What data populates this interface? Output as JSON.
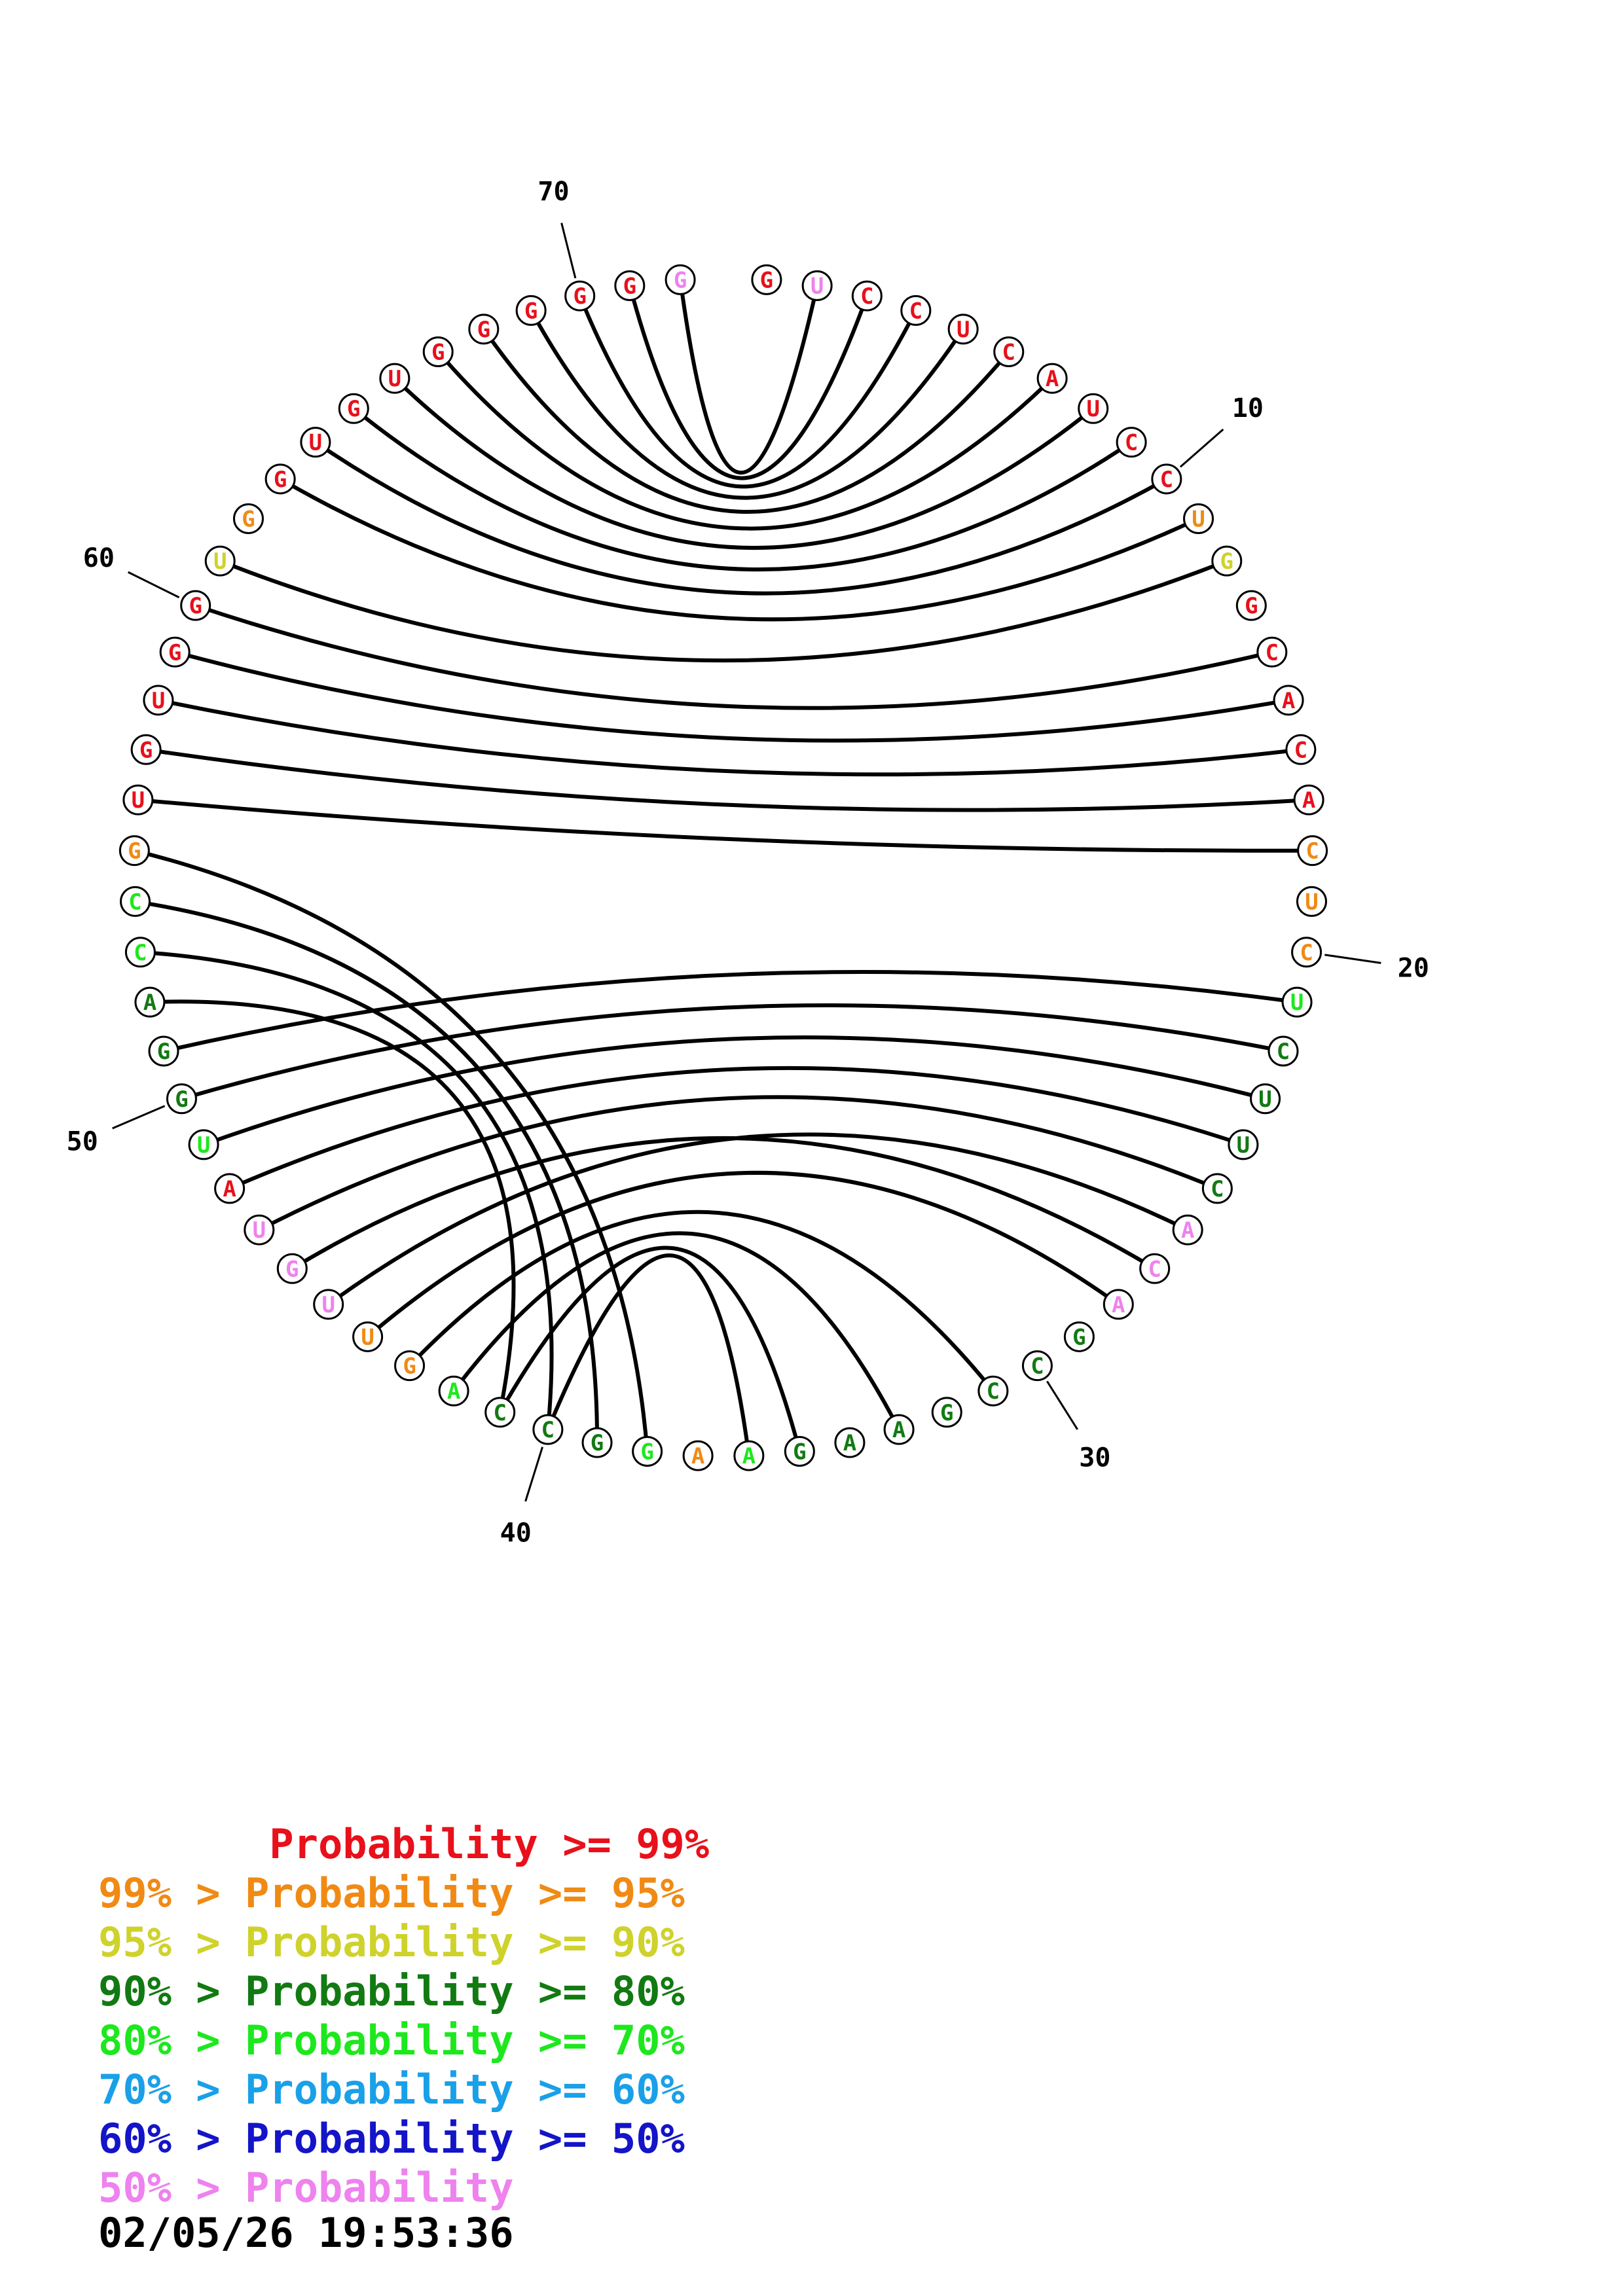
{
  "colors": {
    "p99": "#e8101a",
    "p95": "#f08a14",
    "p90": "#cfd22b",
    "p80": "#127a12",
    "p70": "#1de81d",
    "p60": "#1aa0e8",
    "p50": "#1414c8",
    "plt50": "#ee82ee"
  },
  "nucleotides": [
    {
      "n": 1,
      "base": "G",
      "c": "p99"
    },
    {
      "n": 2,
      "base": "U",
      "c": "plt50"
    },
    {
      "n": 3,
      "base": "C",
      "c": "p99"
    },
    {
      "n": 4,
      "base": "C",
      "c": "p99"
    },
    {
      "n": 5,
      "base": "U",
      "c": "p99"
    },
    {
      "n": 6,
      "base": "C",
      "c": "p99"
    },
    {
      "n": 7,
      "base": "A",
      "c": "p99"
    },
    {
      "n": 8,
      "base": "U",
      "c": "p99"
    },
    {
      "n": 9,
      "base": "C",
      "c": "p99"
    },
    {
      "n": 10,
      "base": "C",
      "c": "p99"
    },
    {
      "n": 11,
      "base": "U",
      "c": "p95"
    },
    {
      "n": 12,
      "base": "G",
      "c": "p90"
    },
    {
      "n": 13,
      "base": "G",
      "c": "p99"
    },
    {
      "n": 14,
      "base": "C",
      "c": "p99"
    },
    {
      "n": 15,
      "base": "A",
      "c": "p99"
    },
    {
      "n": 16,
      "base": "C",
      "c": "p99"
    },
    {
      "n": 17,
      "base": "A",
      "c": "p99"
    },
    {
      "n": 18,
      "base": "C",
      "c": "p95"
    },
    {
      "n": 19,
      "base": "U",
      "c": "p95"
    },
    {
      "n": 20,
      "base": "C",
      "c": "p95"
    },
    {
      "n": 21,
      "base": "U",
      "c": "p70"
    },
    {
      "n": 22,
      "base": "C",
      "c": "p80"
    },
    {
      "n": 23,
      "base": "U",
      "c": "p80"
    },
    {
      "n": 24,
      "base": "U",
      "c": "p80"
    },
    {
      "n": 25,
      "base": "C",
      "c": "p80"
    },
    {
      "n": 26,
      "base": "A",
      "c": "plt50"
    },
    {
      "n": 27,
      "base": "C",
      "c": "plt50"
    },
    {
      "n": 28,
      "base": "A",
      "c": "plt50"
    },
    {
      "n": 29,
      "base": "G",
      "c": "p80"
    },
    {
      "n": 30,
      "base": "C",
      "c": "p80"
    },
    {
      "n": 31,
      "base": "C",
      "c": "p80"
    },
    {
      "n": 32,
      "base": "G",
      "c": "p80"
    },
    {
      "n": 33,
      "base": "A",
      "c": "p80"
    },
    {
      "n": 34,
      "base": "A",
      "c": "p80"
    },
    {
      "n": 35,
      "base": "G",
      "c": "p80"
    },
    {
      "n": 36,
      "base": "A",
      "c": "p70"
    },
    {
      "n": 37,
      "base": "A",
      "c": "p95"
    },
    {
      "n": 38,
      "base": "G",
      "c": "p70"
    },
    {
      "n": 39,
      "base": "G",
      "c": "p80"
    },
    {
      "n": 40,
      "base": "C",
      "c": "p80"
    },
    {
      "n": 41,
      "base": "C",
      "c": "p80"
    },
    {
      "n": 42,
      "base": "A",
      "c": "p70"
    },
    {
      "n": 43,
      "base": "G",
      "c": "p95"
    },
    {
      "n": 44,
      "base": "U",
      "c": "p95"
    },
    {
      "n": 45,
      "base": "U",
      "c": "plt50"
    },
    {
      "n": 46,
      "base": "G",
      "c": "plt50"
    },
    {
      "n": 47,
      "base": "U",
      "c": "plt50"
    },
    {
      "n": 48,
      "base": "A",
      "c": "p99"
    },
    {
      "n": 49,
      "base": "U",
      "c": "p70"
    },
    {
      "n": 50,
      "base": "G",
      "c": "p80"
    },
    {
      "n": 51,
      "base": "G",
      "c": "p80"
    },
    {
      "n": 52,
      "base": "A",
      "c": "p80"
    },
    {
      "n": 53,
      "base": "C",
      "c": "p70"
    },
    {
      "n": 54,
      "base": "C",
      "c": "p70"
    },
    {
      "n": 55,
      "base": "G",
      "c": "p95"
    },
    {
      "n": 56,
      "base": "U",
      "c": "p99"
    },
    {
      "n": 57,
      "base": "G",
      "c": "p99"
    },
    {
      "n": 58,
      "base": "U",
      "c": "p99"
    },
    {
      "n": 59,
      "base": "G",
      "c": "p99"
    },
    {
      "n": 60,
      "base": "G",
      "c": "p99"
    },
    {
      "n": 61,
      "base": "U",
      "c": "p90"
    },
    {
      "n": 62,
      "base": "G",
      "c": "p95"
    },
    {
      "n": 63,
      "base": "G",
      "c": "p99"
    },
    {
      "n": 64,
      "base": "U",
      "c": "p99"
    },
    {
      "n": 65,
      "base": "G",
      "c": "p99"
    },
    {
      "n": 66,
      "base": "U",
      "c": "p99"
    },
    {
      "n": 67,
      "base": "G",
      "c": "p99"
    },
    {
      "n": 68,
      "base": "G",
      "c": "p99"
    },
    {
      "n": 69,
      "base": "G",
      "c": "p99"
    },
    {
      "n": 70,
      "base": "G",
      "c": "p99"
    },
    {
      "n": 71,
      "base": "G",
      "c": "p99"
    },
    {
      "n": 72,
      "base": "G",
      "c": "plt50"
    }
  ],
  "pairs": [
    [
      2,
      72
    ],
    [
      3,
      71
    ],
    [
      4,
      70
    ],
    [
      5,
      69
    ],
    [
      6,
      68
    ],
    [
      7,
      67
    ],
    [
      8,
      66
    ],
    [
      9,
      65
    ],
    [
      10,
      64
    ],
    [
      11,
      63
    ],
    [
      12,
      61
    ],
    [
      14,
      60
    ],
    [
      15,
      59
    ],
    [
      16,
      58
    ],
    [
      17,
      57
    ],
    [
      18,
      56
    ],
    [
      21,
      51
    ],
    [
      22,
      50
    ],
    [
      23,
      49
    ],
    [
      24,
      48
    ],
    [
      25,
      47
    ],
    [
      26,
      45
    ],
    [
      27,
      46
    ],
    [
      28,
      44
    ],
    [
      31,
      43
    ],
    [
      33,
      42
    ],
    [
      35,
      41
    ],
    [
      36,
      40
    ]
  ],
  "pairs_extra": [
    [
      38,
      55
    ],
    [
      39,
      54
    ],
    [
      40,
      53
    ],
    [
      41,
      52
    ]
  ],
  "position_labels": [
    {
      "n": 10,
      "text": "10"
    },
    {
      "n": 20,
      "text": "20"
    },
    {
      "n": 30,
      "text": "30"
    },
    {
      "n": 40,
      "text": "40"
    },
    {
      "n": 50,
      "text": "50"
    },
    {
      "n": 60,
      "text": "60"
    },
    {
      "n": 70,
      "text": "70"
    }
  ],
  "legend": [
    {
      "text": "       Probability >= 99%",
      "c": "p99"
    },
    {
      "text": "99% > Probability >= 95%",
      "c": "p95"
    },
    {
      "text": "95% > Probability >= 90%",
      "c": "p90"
    },
    {
      "text": "90% > Probability >= 80%",
      "c": "p80"
    },
    {
      "text": "80% > Probability >= 70%",
      "c": "p70"
    },
    {
      "text": "70% > Probability >= 60%",
      "c": "p60"
    },
    {
      "text": "60% > Probability >= 50%",
      "c": "p50"
    },
    {
      "text": "50% > Probability",
      "c": "plt50"
    }
  ],
  "timestamp": "02/05/26 19:53:36"
}
